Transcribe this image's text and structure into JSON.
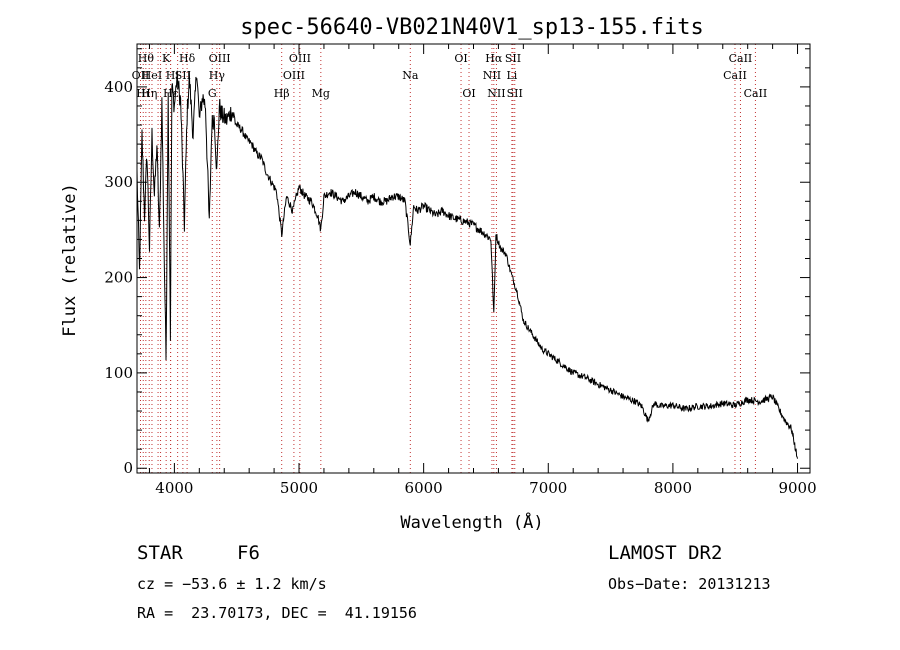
{
  "chart_data": {
    "type": "line",
    "title": "spec-56640-VB021N40V1_sp13-155.fits",
    "xlabel": "Wavelength (Å)",
    "ylabel": "Flux (relative)",
    "xlim": [
      3700,
      9100
    ],
    "ylim": [
      -5,
      445
    ],
    "xticks": [
      4000,
      5000,
      6000,
      7000,
      8000,
      9000
    ],
    "yticks": [
      0,
      100,
      200,
      300,
      400
    ],
    "grid": false,
    "series": [
      {
        "x": [
          3700,
          3720,
          3740,
          3760,
          3780,
          3800,
          3820,
          3840,
          3860,
          3880,
          3900,
          3920,
          3933,
          3950,
          3968,
          3980,
          4000,
          4020,
          4050,
          4080,
          4102,
          4120,
          4150,
          4180,
          4200,
          4226,
          4250,
          4280,
          4300,
          4320,
          4340,
          4360,
          4380,
          4420,
          4460,
          4500,
          4540,
          4580,
          4620,
          4660,
          4700,
          4740,
          4780,
          4820,
          4861,
          4900,
          4950,
          5000,
          5050,
          5100,
          5150,
          5175,
          5200,
          5250,
          5300,
          5350,
          5400,
          5450,
          5500,
          5550,
          5600,
          5650,
          5700,
          5750,
          5800,
          5850,
          5893,
          5920,
          5950,
          6000,
          6050,
          6100,
          6150,
          6200,
          6250,
          6300,
          6350,
          6400,
          6450,
          6500,
          6540,
          6563,
          6580,
          6620,
          6660,
          6700,
          6750,
          6800,
          6850,
          6900,
          6950,
          7000,
          7100,
          7200,
          7300,
          7400,
          7500,
          7600,
          7700,
          7750,
          7800,
          7850,
          7900,
          8000,
          8100,
          8200,
          8300,
          8400,
          8500,
          8600,
          8700,
          8800,
          8850,
          8900,
          8950,
          9000
        ],
        "y": [
          310,
          205,
          350,
          265,
          330,
          230,
          350,
          285,
          340,
          245,
          385,
          210,
          115,
          390,
          140,
          400,
          380,
          410,
          385,
          255,
          370,
          410,
          350,
          420,
          365,
          390,
          380,
          255,
          360,
          370,
          310,
          380,
          370,
          365,
          375,
          360,
          355,
          345,
          340,
          330,
          325,
          310,
          300,
          290,
          245,
          285,
          270,
          295,
          285,
          280,
          265,
          250,
          285,
          290,
          285,
          280,
          285,
          290,
          285,
          280,
          285,
          280,
          280,
          285,
          285,
          280,
          235,
          275,
          270,
          275,
          270,
          265,
          270,
          265,
          262,
          260,
          258,
          255,
          250,
          245,
          240,
          160,
          245,
          230,
          225,
          205,
          185,
          155,
          145,
          135,
          125,
          120,
          110,
          100,
          95,
          88,
          82,
          75,
          70,
          65,
          50,
          68,
          65,
          66,
          62,
          65,
          65,
          68,
          66,
          72,
          70,
          75,
          62,
          50,
          42,
          10
        ]
      }
    ],
    "lines": [
      {
        "x": 3771,
        "label": "Hθ",
        "row": 1
      },
      {
        "x": 3728,
        "label": "OII",
        "row": 2
      },
      {
        "x": 3750,
        "label": "Hι",
        "row": 3
      },
      {
        "x": 3798,
        "label": "Hη",
        "row": 3
      },
      {
        "x": 3820,
        "label": "HeI",
        "row": 2
      },
      {
        "x": 3869,
        "label": "",
        "row": 0
      },
      {
        "x": 3889,
        "label": "",
        "row": 0
      },
      {
        "x": 3934,
        "label": "K",
        "row": 1
      },
      {
        "x": 3969,
        "label": "H",
        "row": 2
      },
      {
        "x": 3970,
        "label": "Hε",
        "row": 3
      },
      {
        "x": 4026,
        "label": "",
        "row": 0
      },
      {
        "x": 4068,
        "label": "SII",
        "row": 2
      },
      {
        "x": 4102,
        "label": "Hδ",
        "row": 1
      },
      {
        "x": 4304,
        "label": "G",
        "row": 3
      },
      {
        "x": 4341,
        "label": "Hγ",
        "row": 2
      },
      {
        "x": 4363,
        "label": "OIII",
        "row": 1
      },
      {
        "x": 4861,
        "label": "Hβ",
        "row": 3
      },
      {
        "x": 4959,
        "label": "OIII",
        "row": 2
      },
      {
        "x": 5007,
        "label": "OIII",
        "row": 1
      },
      {
        "x": 5175,
        "label": "Mg",
        "row": 3
      },
      {
        "x": 5893,
        "label": "Na",
        "row": 2
      },
      {
        "x": 6300,
        "label": "OI",
        "row": 1
      },
      {
        "x": 6364,
        "label": "OI",
        "row": 3
      },
      {
        "x": 6548,
        "label": "NII",
        "row": 2
      },
      {
        "x": 6563,
        "label": "Hα",
        "row": 1
      },
      {
        "x": 6584,
        "label": "NII",
        "row": 3
      },
      {
        "x": 6708,
        "label": "Li",
        "row": 2
      },
      {
        "x": 6717,
        "label": "SII",
        "row": 1
      },
      {
        "x": 6731,
        "label": "SII",
        "row": 3
      },
      {
        "x": 8498,
        "label": "CaII",
        "row": 2
      },
      {
        "x": 8542,
        "label": "CaII",
        "row": 1
      },
      {
        "x": 8662,
        "label": "CaII",
        "row": 3
      }
    ]
  },
  "info": {
    "class_label": "STAR",
    "subclass": "F6",
    "survey": "LAMOST DR2",
    "redshift": "cz = −53.6 ± 1.2 km/s",
    "obs_date": "Obs−Date: 20131213",
    "coords": "RA =  23.70173, DEC =  41.19156"
  }
}
